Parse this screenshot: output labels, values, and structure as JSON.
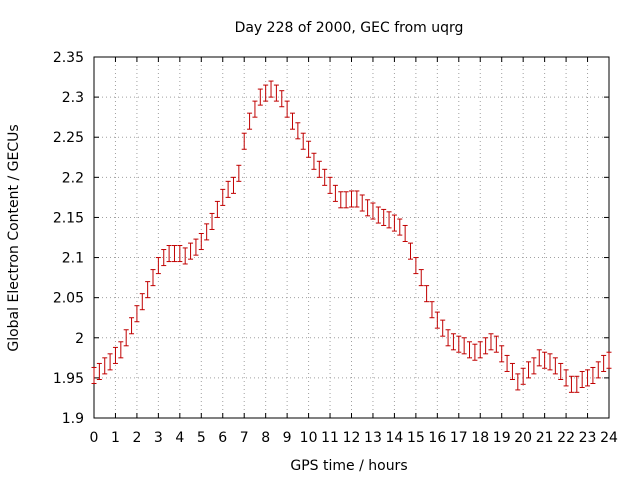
{
  "chart_data": {
    "type": "scatter",
    "title": "Day 228 of 2000, GEC from uqrg",
    "xlabel": "GPS time / hours",
    "ylabel": "Global Electron Content / GECUs",
    "xlim": [
      0,
      24
    ],
    "ylim": [
      1.9,
      2.35
    ],
    "xticks": [
      0,
      1,
      2,
      3,
      4,
      5,
      6,
      7,
      8,
      9,
      10,
      11,
      12,
      13,
      14,
      15,
      16,
      17,
      18,
      19,
      20,
      21,
      22,
      23,
      24
    ],
    "yticks": [
      1.9,
      1.95,
      2,
      2.05,
      2.1,
      2.15,
      2.2,
      2.25,
      2.3,
      2.35
    ],
    "ytick_labels": [
      "1.9",
      "1.95",
      "2",
      "2.05",
      "2.1",
      "2.15",
      "2.2",
      "2.25",
      "2.3",
      "2.35"
    ],
    "grid": true,
    "series_color": "#c00000",
    "error": 0.01,
    "x": [
      0.0,
      0.25,
      0.5,
      0.75,
      1.0,
      1.25,
      1.5,
      1.75,
      2.0,
      2.25,
      2.5,
      2.75,
      3.0,
      3.25,
      3.5,
      3.75,
      4.0,
      4.25,
      4.5,
      4.75,
      5.0,
      5.25,
      5.5,
      5.75,
      6.0,
      6.25,
      6.5,
      6.75,
      7.0,
      7.25,
      7.5,
      7.75,
      8.0,
      8.25,
      8.5,
      8.75,
      9.0,
      9.25,
      9.5,
      9.75,
      10.0,
      10.25,
      10.5,
      10.75,
      11.0,
      11.25,
      11.5,
      11.75,
      12.0,
      12.25,
      12.5,
      12.75,
      13.0,
      13.25,
      13.5,
      13.75,
      14.0,
      14.25,
      14.5,
      14.75,
      15.0,
      15.25,
      15.5,
      15.75,
      16.0,
      16.25,
      16.5,
      16.75,
      17.0,
      17.25,
      17.5,
      17.75,
      18.0,
      18.25,
      18.5,
      18.75,
      19.0,
      19.25,
      19.5,
      19.75,
      20.0,
      20.25,
      20.5,
      20.75,
      21.0,
      21.25,
      21.5,
      21.75,
      22.0,
      22.25,
      22.5,
      22.75,
      23.0,
      23.25,
      23.5,
      23.75,
      24.0
    ],
    "y": [
      1.953,
      1.958,
      1.965,
      1.97,
      1.978,
      1.985,
      2.0,
      2.015,
      2.03,
      2.045,
      2.06,
      2.075,
      2.09,
      2.1,
      2.105,
      2.105,
      2.105,
      2.102,
      2.108,
      2.113,
      2.12,
      2.132,
      2.145,
      2.16,
      2.175,
      2.185,
      2.19,
      2.205,
      2.245,
      2.27,
      2.285,
      2.3,
      2.305,
      2.31,
      2.305,
      2.298,
      2.285,
      2.27,
      2.258,
      2.245,
      2.235,
      2.22,
      2.21,
      2.2,
      2.19,
      2.18,
      2.172,
      2.172,
      2.173,
      2.173,
      2.168,
      2.162,
      2.158,
      2.153,
      2.15,
      2.147,
      2.143,
      2.138,
      2.13,
      2.108,
      2.09,
      2.075,
      2.055,
      2.035,
      2.022,
      2.012,
      2.0,
      1.995,
      1.992,
      1.99,
      1.985,
      1.982,
      1.985,
      1.99,
      1.995,
      1.992,
      1.98,
      1.968,
      1.958,
      1.945,
      1.952,
      1.96,
      1.965,
      1.975,
      1.972,
      1.97,
      1.965,
      1.958,
      1.95,
      1.942,
      1.942,
      1.948,
      1.95,
      1.953,
      1.96,
      1.968,
      1.972
    ]
  }
}
